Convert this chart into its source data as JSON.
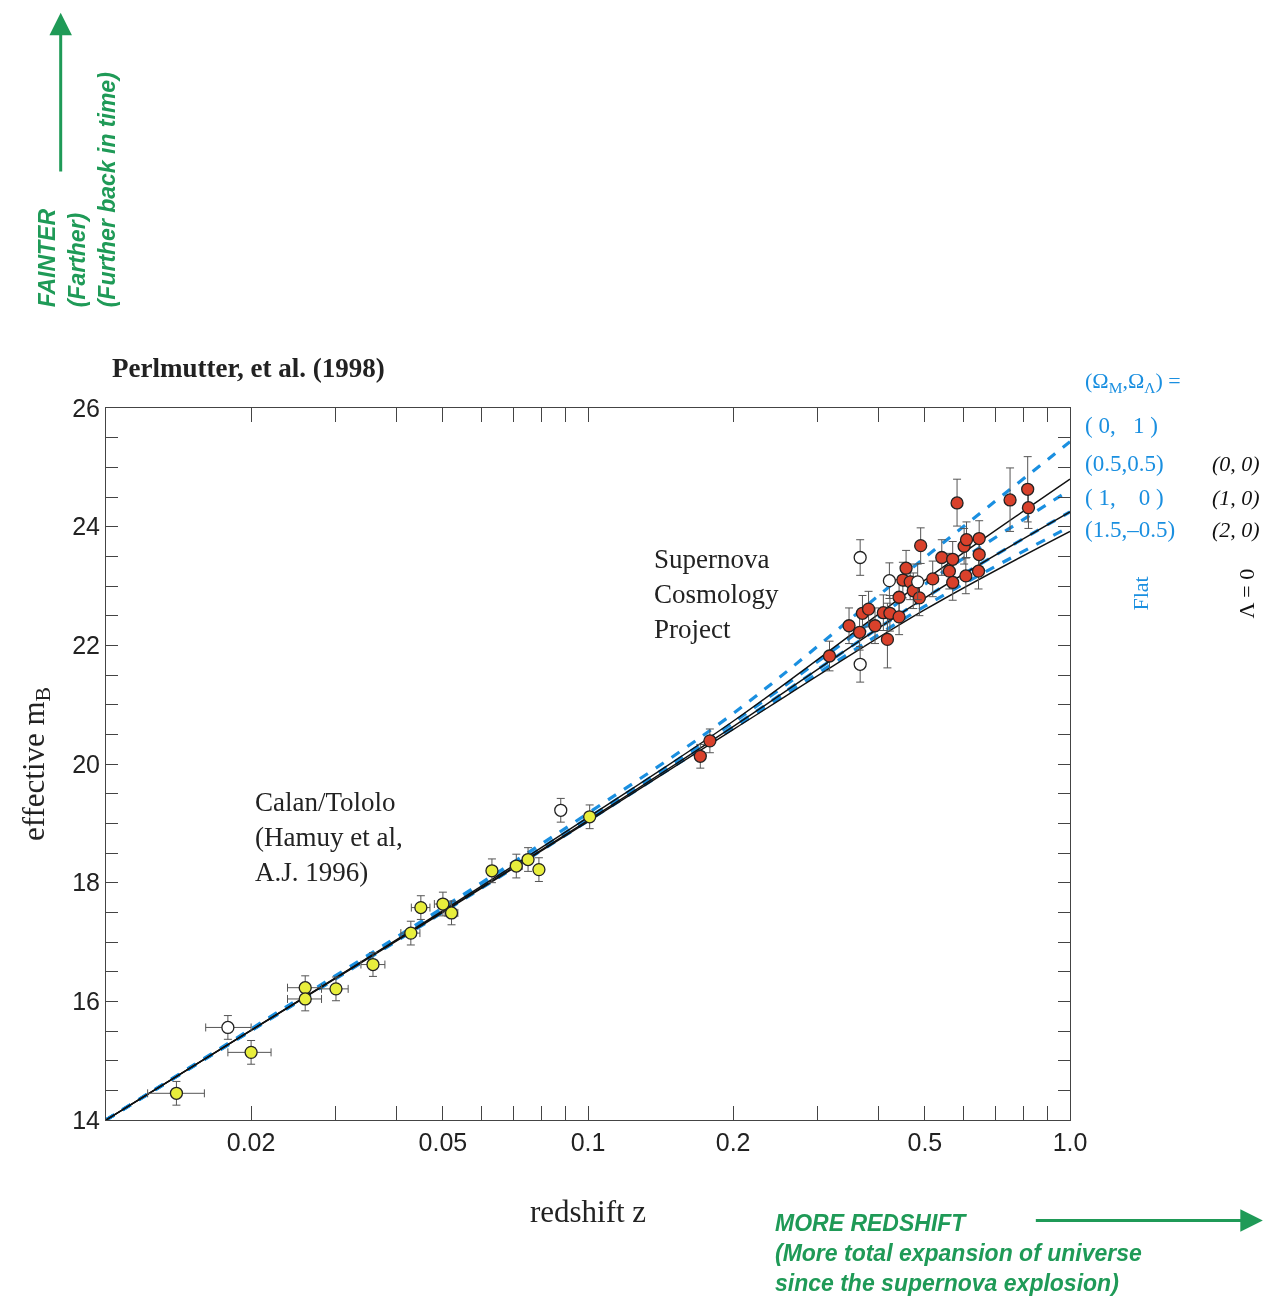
{
  "chart_data": {
    "type": "scatter",
    "title": "Perlmutter, et al. (1998)",
    "xlabel": "redshift z",
    "ylabel": "effective m$_{B}$",
    "log": "x",
    "marker": "circle",
    "xlim": [
      0.01,
      1.0
    ],
    "xticks": [
      0.02,
      {
        "value": 0.03,
        "label": null
      },
      {
        "value": 0.04,
        "label": null
      },
      0.05,
      {
        "value": 0.06,
        "label": null
      },
      {
        "value": 0.07,
        "label": null
      },
      {
        "value": 0.08,
        "label": null
      },
      {
        "value": 0.09,
        "label": null
      },
      0.1,
      0.2,
      {
        "value": 0.3,
        "label": null
      },
      {
        "value": 0.4,
        "label": null
      },
      0.5,
      {
        "value": 0.6,
        "label": null
      },
      {
        "value": 0.7,
        "label": null
      },
      {
        "value": 0.8,
        "label": null
      },
      {
        "value": 0.9,
        "label": null
      },
      {
        "value": 1.0,
        "label": "1.0"
      }
    ],
    "ylim": [
      14,
      26
    ],
    "yticks": [
      14,
      {
        "value": 14.5,
        "label": null
      },
      {
        "value": 15,
        "label": null
      },
      {
        "value": 15.5,
        "label": null
      },
      16,
      {
        "value": 16.5,
        "label": null
      },
      {
        "value": 17,
        "label": null
      },
      {
        "value": 17.5,
        "label": null
      },
      18,
      {
        "value": 18.5,
        "label": null
      },
      {
        "value": 19,
        "label": null
      },
      {
        "value": 19.5,
        "label": null
      },
      20,
      {
        "value": 20.5,
        "label": null
      },
      {
        "value": 21,
        "label": null
      },
      {
        "value": 21.5,
        "label": null
      },
      22,
      {
        "value": 22.5,
        "label": null
      },
      {
        "value": 23,
        "label": null
      },
      {
        "value": 23.5,
        "label": null
      },
      24,
      {
        "value": 24.5,
        "label": null
      },
      {
        "value": 25,
        "label": null
      },
      {
        "value": 25.5,
        "label": null
      },
      26
    ],
    "series": [
      {
        "type": "line",
        "name": "( 0,   1 )",
        "color": "#1a8fe0",
        "line_style": "dashed",
        "x": [
          0.01,
          0.05,
          0.1,
          0.2,
          0.5,
          1.0
        ],
        "values": [
          14.0,
          17.58,
          19.17,
          20.85,
          23.48,
          25.43
        ],
        "marker": "none"
      },
      {
        "type": "line",
        "name": "(0.5,0.5)",
        "color": "#1a8fe0",
        "line_style": "dashed",
        "x": [
          0.01,
          0.05,
          0.1,
          0.2,
          0.5,
          1.0
        ],
        "values": [
          14.0,
          17.53,
          19.09,
          20.7,
          23.03,
          24.62
        ],
        "marker": "none"
      },
      {
        "type": "line",
        "name": "( 1,    0 )",
        "color": "#1a8fe0",
        "line_style": "dashed",
        "x": [
          0.01,
          0.05,
          0.1,
          0.2,
          0.5,
          1.0
        ],
        "values": [
          14.0,
          17.51,
          19.05,
          20.63,
          22.8,
          24.25
        ],
        "marker": "none"
      },
      {
        "type": "line",
        "name": "(1.5,–0.5)",
        "color": "#1a8fe0",
        "line_style": "dashed",
        "x": [
          0.01,
          0.05,
          0.1,
          0.2,
          0.5,
          1.0
        ],
        "values": [
          14.0,
          17.5,
          19.04,
          20.6,
          22.66,
          24.0
        ],
        "marker": "none"
      },
      {
        "type": "line",
        "color": "#111111",
        "line_style": "solid",
        "x": [
          0.01,
          0.05,
          0.1,
          0.2,
          0.5,
          1.0
        ],
        "values": [
          14.0,
          17.53,
          19.1,
          20.72,
          23.1,
          24.8
        ],
        "marker": "none"
      },
      {
        "type": "line",
        "color": "#111111",
        "line_style": "solid",
        "x": [
          0.01,
          0.05,
          0.1,
          0.2,
          0.5,
          1.0
        ],
        "values": [
          14.0,
          17.51,
          19.05,
          20.63,
          22.8,
          24.25
        ],
        "marker": "none"
      },
      {
        "type": "line",
        "color": "#111111",
        "line_style": "solid",
        "x": [
          0.01,
          0.05,
          0.1,
          0.2,
          0.5,
          1.0
        ],
        "values": [
          14.0,
          17.5,
          19.03,
          20.58,
          22.6,
          23.92
        ],
        "marker": "none"
      },
      {
        "color": "#e8ee3c",
        "x": [
          0.014,
          0.02,
          0.0259,
          0.0259,
          0.03,
          0.0358,
          0.0429,
          0.045,
          0.05,
          0.0521,
          0.0632,
          0.071,
          0.0751,
          0.0791,
          0.1008
        ],
        "values": [
          14.45,
          15.14,
          16.23,
          16.04,
          16.21,
          16.62,
          17.15,
          17.58,
          17.64,
          17.49,
          18.2,
          18.28,
          18.39,
          18.22,
          19.11
        ],
        "errors": [
          0.2,
          0.2,
          0.2,
          0.2,
          0.2,
          0.2,
          0.2,
          0.2,
          0.2,
          0.2,
          0.2,
          0.2,
          0.2,
          0.2,
          0.2
        ],
        "xerrors": [
          [
            0.0122,
            0.016
          ],
          [
            0.0179,
            0.022
          ],
          [
            0.0238,
            0.028
          ],
          [
            0.0238,
            0.028
          ],
          [
            0.028,
            0.0318
          ],
          [
            0.0338,
            0.0379
          ],
          [
            0.0409,
            0.0448
          ],
          [
            0.043,
            0.047
          ],
          [
            0.048,
            0.052
          ],
          [
            0.0505,
            0.0537
          ],
          null,
          [
            0.069,
            0.073
          ],
          null,
          null,
          null
        ]
      },
      {
        "color": "#d9412b",
        "x": [
          0.171,
          0.179,
          0.317,
          0.348,
          0.366,
          0.371,
          0.382,
          0.394,
          0.41,
          0.423,
          0.418,
          0.442,
          0.442,
          0.45,
          0.457,
          0.466,
          0.473,
          0.487,
          0.49,
          0.519,
          0.542,
          0.562,
          0.571,
          0.571,
          0.583,
          0.603,
          0.61,
          0.608,
          0.648,
          0.648,
          0.646,
          0.751,
          0.817,
          0.82
        ],
        "values": [
          20.13,
          20.39,
          21.82,
          22.33,
          22.22,
          22.54,
          22.61,
          22.33,
          22.55,
          22.54,
          22.1,
          22.48,
          22.81,
          23.1,
          23.3,
          23.07,
          22.92,
          22.8,
          23.68,
          23.12,
          23.48,
          23.25,
          23.45,
          23.06,
          24.4,
          23.67,
          23.78,
          23.17,
          23.8,
          23.53,
          23.25,
          24.45,
          24.63,
          24.32
        ],
        "errors": [
          0.2,
          0.2,
          0.25,
          0.3,
          0.3,
          0.3,
          0.3,
          0.3,
          0.3,
          0.3,
          [
            21.62,
            22.71
          ],
          0.3,
          0.3,
          0.3,
          0.3,
          0.3,
          0.3,
          0.3,
          0.3,
          0.3,
          0.3,
          0.3,
          0.3,
          0.3,
          [
            24.01,
            24.8
          ],
          0.3,
          0.3,
          0.3,
          0.3,
          0.2,
          0.3,
          [
            23.92,
            24.99
          ],
          0.55,
          0.35
        ]
      },
      {
        "color": "#ffffff",
        "x": [
          0.0179,
          0.0878,
          0.367,
          0.367,
          0.422,
          0.483
        ],
        "values": [
          15.56,
          19.22,
          23.48,
          21.68,
          23.09,
          23.07
        ],
        "errors": [
          0.2,
          0.2,
          0.3,
          0.3,
          0.3,
          0.3
        ],
        "xerrors": [
          [
            0.0161,
            0.02
          ],
          null,
          null,
          null,
          null,
          null
        ]
      }
    ],
    "annotations": [
      "Calan/Tololo\n(Hamuy et al,\nA.J. 1996)",
      "Supernova\nCosmology\nProject",
      "(Ω$_{M}$,Ω$_{Λ}$) =",
      "Flat",
      "Λ = 0",
      "FAINTER\n(Farther)\n(Further back in time)",
      "MORE REDSHIFT\n(More total expansion of universe\nsince the supernova explosion)",
      "(0, 0)",
      "(1, 0)",
      "(2, 0)"
    ]
  }
}
